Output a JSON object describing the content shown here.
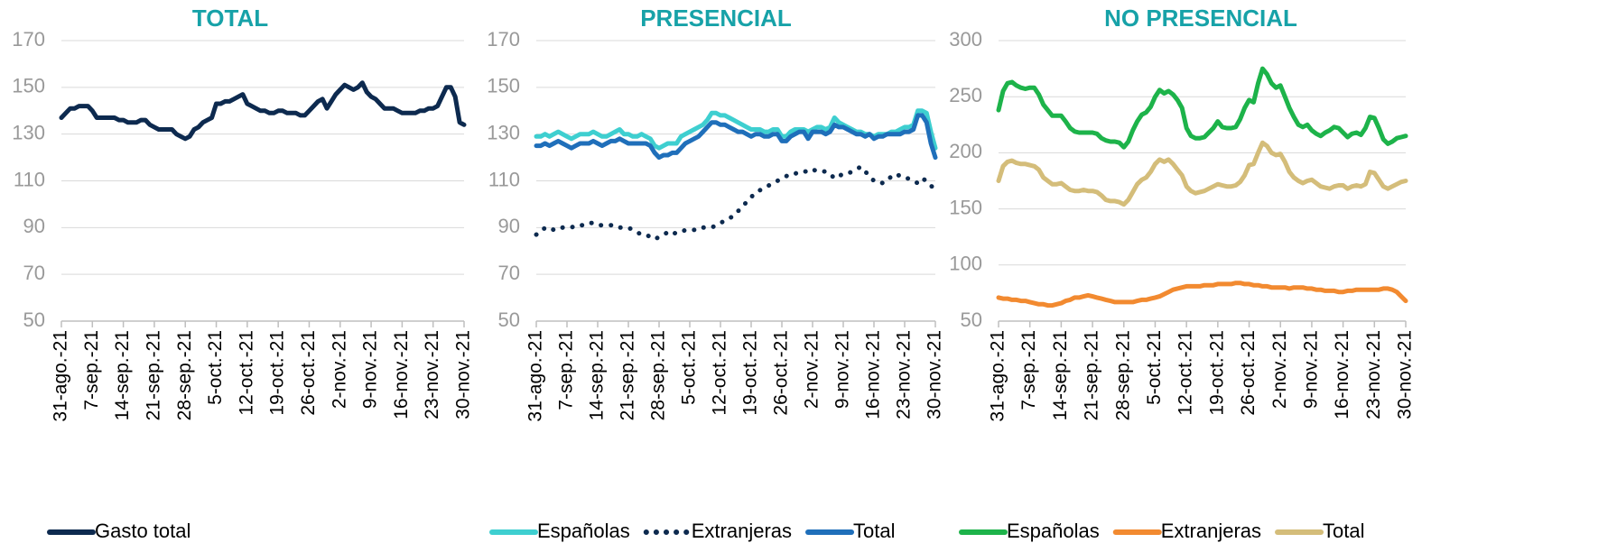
{
  "chart_data": [
    {
      "type": "line",
      "title": "TOTAL",
      "categories": [
        "31-ago.-21",
        null,
        null,
        null,
        null,
        null,
        null,
        "7-sep.-21",
        null,
        null,
        null,
        null,
        null,
        null,
        "14-sep.-21",
        null,
        null,
        null,
        null,
        null,
        null,
        "21-sep.-21",
        null,
        null,
        null,
        null,
        null,
        null,
        "28-sep.-21",
        null,
        null,
        null,
        null,
        null,
        null,
        "5-oct.-21",
        null,
        null,
        null,
        null,
        null,
        null,
        "12-oct.-21",
        null,
        null,
        null,
        null,
        null,
        null,
        "19-oct.-21",
        null,
        null,
        null,
        null,
        null,
        null,
        "26-oct.-21",
        null,
        null,
        null,
        null,
        null,
        null,
        "2-nov.-21",
        null,
        null,
        null,
        null,
        null,
        null,
        "9-nov.-21",
        null,
        null,
        null,
        null,
        null,
        null,
        "16-nov.-21",
        null,
        null,
        null,
        null,
        null,
        null,
        "23-nov.-21",
        null,
        null,
        null,
        null,
        null,
        null,
        "30-nov.-21"
      ],
      "series": [
        {
          "name": "Gasto total",
          "color": "#0d2a4f",
          "values": [
            137,
            139,
            141,
            141,
            142,
            142,
            142,
            140,
            137,
            137,
            137,
            137,
            137,
            136,
            136,
            135,
            135,
            135,
            136,
            136,
            134,
            133,
            132,
            132,
            132,
            132,
            130,
            129,
            128,
            129,
            132,
            133,
            135,
            136,
            137,
            143,
            143,
            144,
            144,
            145,
            146,
            147,
            143,
            142,
            141,
            140,
            140,
            139,
            139,
            140,
            140,
            139,
            139,
            139,
            138,
            138,
            140,
            142,
            144,
            145,
            141,
            144,
            147,
            149,
            151,
            150,
            149,
            150,
            152,
            148,
            146,
            145,
            143,
            141,
            141,
            141,
            140,
            139,
            139,
            139,
            139,
            140,
            140,
            141,
            141,
            142,
            146,
            150,
            150,
            146,
            135,
            134
          ]
        }
      ],
      "ylim": [
        50,
        170
      ],
      "yticks": [
        50,
        70,
        90,
        110,
        130,
        150,
        170
      ],
      "grid": true,
      "legend": "bottom"
    },
    {
      "type": "line",
      "title": "PRESENCIAL",
      "categories": [
        "31-ago.-21",
        null,
        null,
        null,
        null,
        null,
        null,
        "7-sep.-21",
        null,
        null,
        null,
        null,
        null,
        null,
        "14-sep.-21",
        null,
        null,
        null,
        null,
        null,
        null,
        "21-sep.-21",
        null,
        null,
        null,
        null,
        null,
        null,
        "28-sep.-21",
        null,
        null,
        null,
        null,
        null,
        null,
        "5-oct.-21",
        null,
        null,
        null,
        null,
        null,
        null,
        "12-oct.-21",
        null,
        null,
        null,
        null,
        null,
        null,
        "19-oct.-21",
        null,
        null,
        null,
        null,
        null,
        null,
        "26-oct.-21",
        null,
        null,
        null,
        null,
        null,
        null,
        "2-nov.-21",
        null,
        null,
        null,
        null,
        null,
        null,
        "9-nov.-21",
        null,
        null,
        null,
        null,
        null,
        null,
        "16-nov.-21",
        null,
        null,
        null,
        null,
        null,
        null,
        "23-nov.-21",
        null,
        null,
        null,
        null,
        null,
        null,
        "30-nov.-21"
      ],
      "series": [
        {
          "name": "Españolas",
          "color": "#3ecfd0",
          "values": [
            129,
            129,
            130,
            129,
            130,
            131,
            130,
            129,
            128,
            129,
            130,
            130,
            130,
            131,
            130,
            129,
            129,
            130,
            131,
            132,
            130,
            130,
            129,
            129,
            130,
            129,
            128,
            125,
            124,
            125,
            126,
            126,
            126,
            129,
            130,
            131,
            132,
            133,
            134,
            136,
            139,
            139,
            138,
            138,
            137,
            136,
            135,
            134,
            133,
            132,
            132,
            132,
            131,
            131,
            132,
            132,
            129,
            129,
            131,
            132,
            132,
            132,
            131,
            132,
            133,
            133,
            132,
            133,
            137,
            135,
            134,
            133,
            132,
            131,
            131,
            130,
            130,
            129,
            130,
            130,
            130,
            131,
            131,
            132,
            133,
            133,
            134,
            140,
            140,
            139,
            131,
            124
          ]
        },
        {
          "name": "Extranjeras",
          "color": "#0d2a4f",
          "line_style": "dotted",
          "values": [
            87,
            88,
            90,
            90,
            89,
            89,
            90,
            90,
            90,
            91,
            91,
            91,
            92,
            92,
            91,
            91,
            91,
            91,
            91,
            90,
            90,
            90,
            89,
            88,
            87,
            87,
            86,
            85,
            86,
            87,
            88,
            87,
            88,
            88,
            89,
            89,
            89,
            90,
            90,
            90,
            90,
            91,
            92,
            93,
            94,
            95,
            97,
            99,
            101,
            103,
            105,
            106,
            107,
            108,
            109,
            110,
            111,
            112,
            113,
            113,
            114,
            114,
            114,
            115,
            114,
            114,
            114,
            113,
            111,
            112,
            113,
            113,
            114,
            115,
            116,
            114,
            112,
            110,
            110,
            109,
            110,
            112,
            113,
            112,
            111,
            111,
            110,
            109,
            111,
            110,
            108,
            106
          ]
        },
        {
          "name": "Total",
          "color": "#1f6fba",
          "values": [
            125,
            125,
            126,
            125,
            126,
            127,
            126,
            125,
            124,
            125,
            126,
            126,
            126,
            127,
            126,
            125,
            126,
            127,
            127,
            128,
            127,
            126,
            126,
            126,
            126,
            126,
            125,
            122,
            120,
            121,
            121,
            122,
            122,
            124,
            126,
            127,
            128,
            129,
            131,
            133,
            135,
            135,
            134,
            134,
            133,
            132,
            131,
            131,
            130,
            129,
            130,
            130,
            129,
            129,
            130,
            130,
            127,
            127,
            129,
            130,
            131,
            131,
            128,
            131,
            131,
            131,
            130,
            131,
            134,
            133,
            133,
            132,
            131,
            130,
            130,
            129,
            130,
            128,
            129,
            129,
            130,
            130,
            130,
            130,
            131,
            131,
            132,
            138,
            138,
            135,
            126,
            120
          ]
        }
      ],
      "ylim": [
        50,
        170
      ],
      "yticks": [
        50,
        70,
        90,
        110,
        130,
        150,
        170
      ],
      "grid": true,
      "legend": "bottom"
    },
    {
      "type": "line",
      "title": "NO PRESENCIAL",
      "categories": [
        "31-ago.-21",
        null,
        null,
        null,
        null,
        null,
        null,
        "7-sep.-21",
        null,
        null,
        null,
        null,
        null,
        null,
        "14-sep.-21",
        null,
        null,
        null,
        null,
        null,
        null,
        "21-sep.-21",
        null,
        null,
        null,
        null,
        null,
        null,
        "28-sep.-21",
        null,
        null,
        null,
        null,
        null,
        null,
        "5-oct.-21",
        null,
        null,
        null,
        null,
        null,
        null,
        "12-oct.-21",
        null,
        null,
        null,
        null,
        null,
        null,
        "19-oct.-21",
        null,
        null,
        null,
        null,
        null,
        null,
        "26-oct.-21",
        null,
        null,
        null,
        null,
        null,
        null,
        "2-nov.-21",
        null,
        null,
        null,
        null,
        null,
        null,
        "9-nov.-21",
        null,
        null,
        null,
        null,
        null,
        null,
        "16-nov.-21",
        null,
        null,
        null,
        null,
        null,
        null,
        "23-nov.-21",
        null,
        null,
        null,
        null,
        null,
        null,
        "30-nov.-21"
      ],
      "series": [
        {
          "name": "Españolas",
          "color": "#1db34a",
          "values": [
            238,
            255,
            262,
            263,
            260,
            258,
            257,
            258,
            258,
            252,
            243,
            238,
            233,
            233,
            233,
            228,
            222,
            219,
            218,
            218,
            218,
            218,
            217,
            213,
            211,
            210,
            210,
            209,
            205,
            210,
            220,
            228,
            234,
            236,
            241,
            250,
            256,
            253,
            255,
            252,
            247,
            240,
            222,
            215,
            213,
            213,
            214,
            218,
            222,
            228,
            223,
            222,
            222,
            223,
            230,
            240,
            247,
            245,
            262,
            275,
            270,
            262,
            258,
            260,
            250,
            240,
            232,
            225,
            223,
            225,
            220,
            217,
            215,
            218,
            220,
            223,
            222,
            218,
            214,
            217,
            218,
            216,
            222,
            232,
            231,
            222,
            212,
            208,
            210,
            213,
            214,
            215
          ]
        },
        {
          "name": "Extranjeras",
          "color": "#f28a30",
          "values": [
            71,
            70,
            70,
            69,
            69,
            68,
            68,
            67,
            66,
            65,
            65,
            64,
            64,
            65,
            66,
            68,
            69,
            71,
            71,
            72,
            73,
            72,
            71,
            70,
            69,
            68,
            67,
            67,
            67,
            67,
            67,
            68,
            69,
            69,
            70,
            71,
            72,
            74,
            76,
            78,
            79,
            80,
            81,
            81,
            81,
            81,
            82,
            82,
            82,
            83,
            83,
            83,
            83,
            84,
            84,
            83,
            83,
            82,
            82,
            81,
            81,
            80,
            80,
            80,
            80,
            79,
            80,
            80,
            80,
            79,
            79,
            78,
            78,
            77,
            77,
            77,
            76,
            76,
            77,
            77,
            78,
            78,
            78,
            78,
            78,
            78,
            79,
            79,
            78,
            76,
            72,
            68
          ]
        },
        {
          "name": "Total",
          "color": "#d4bd7a",
          "values": [
            175,
            188,
            192,
            193,
            191,
            190,
            190,
            189,
            188,
            185,
            178,
            175,
            172,
            172,
            173,
            170,
            167,
            166,
            166,
            167,
            166,
            166,
            165,
            162,
            158,
            157,
            157,
            156,
            154,
            158,
            165,
            172,
            176,
            178,
            183,
            190,
            194,
            192,
            194,
            190,
            185,
            180,
            170,
            166,
            164,
            165,
            166,
            168,
            170,
            172,
            171,
            170,
            170,
            171,
            174,
            180,
            189,
            190,
            200,
            209,
            206,
            200,
            198,
            199,
            192,
            183,
            178,
            175,
            173,
            175,
            176,
            173,
            170,
            169,
            168,
            170,
            171,
            171,
            168,
            170,
            171,
            170,
            172,
            183,
            182,
            176,
            170,
            168,
            170,
            172,
            174,
            175
          ]
        }
      ],
      "ylim": [
        50,
        300
      ],
      "yticks": [
        50,
        100,
        150,
        200,
        250,
        300
      ],
      "grid": true,
      "legend": "bottom"
    }
  ]
}
